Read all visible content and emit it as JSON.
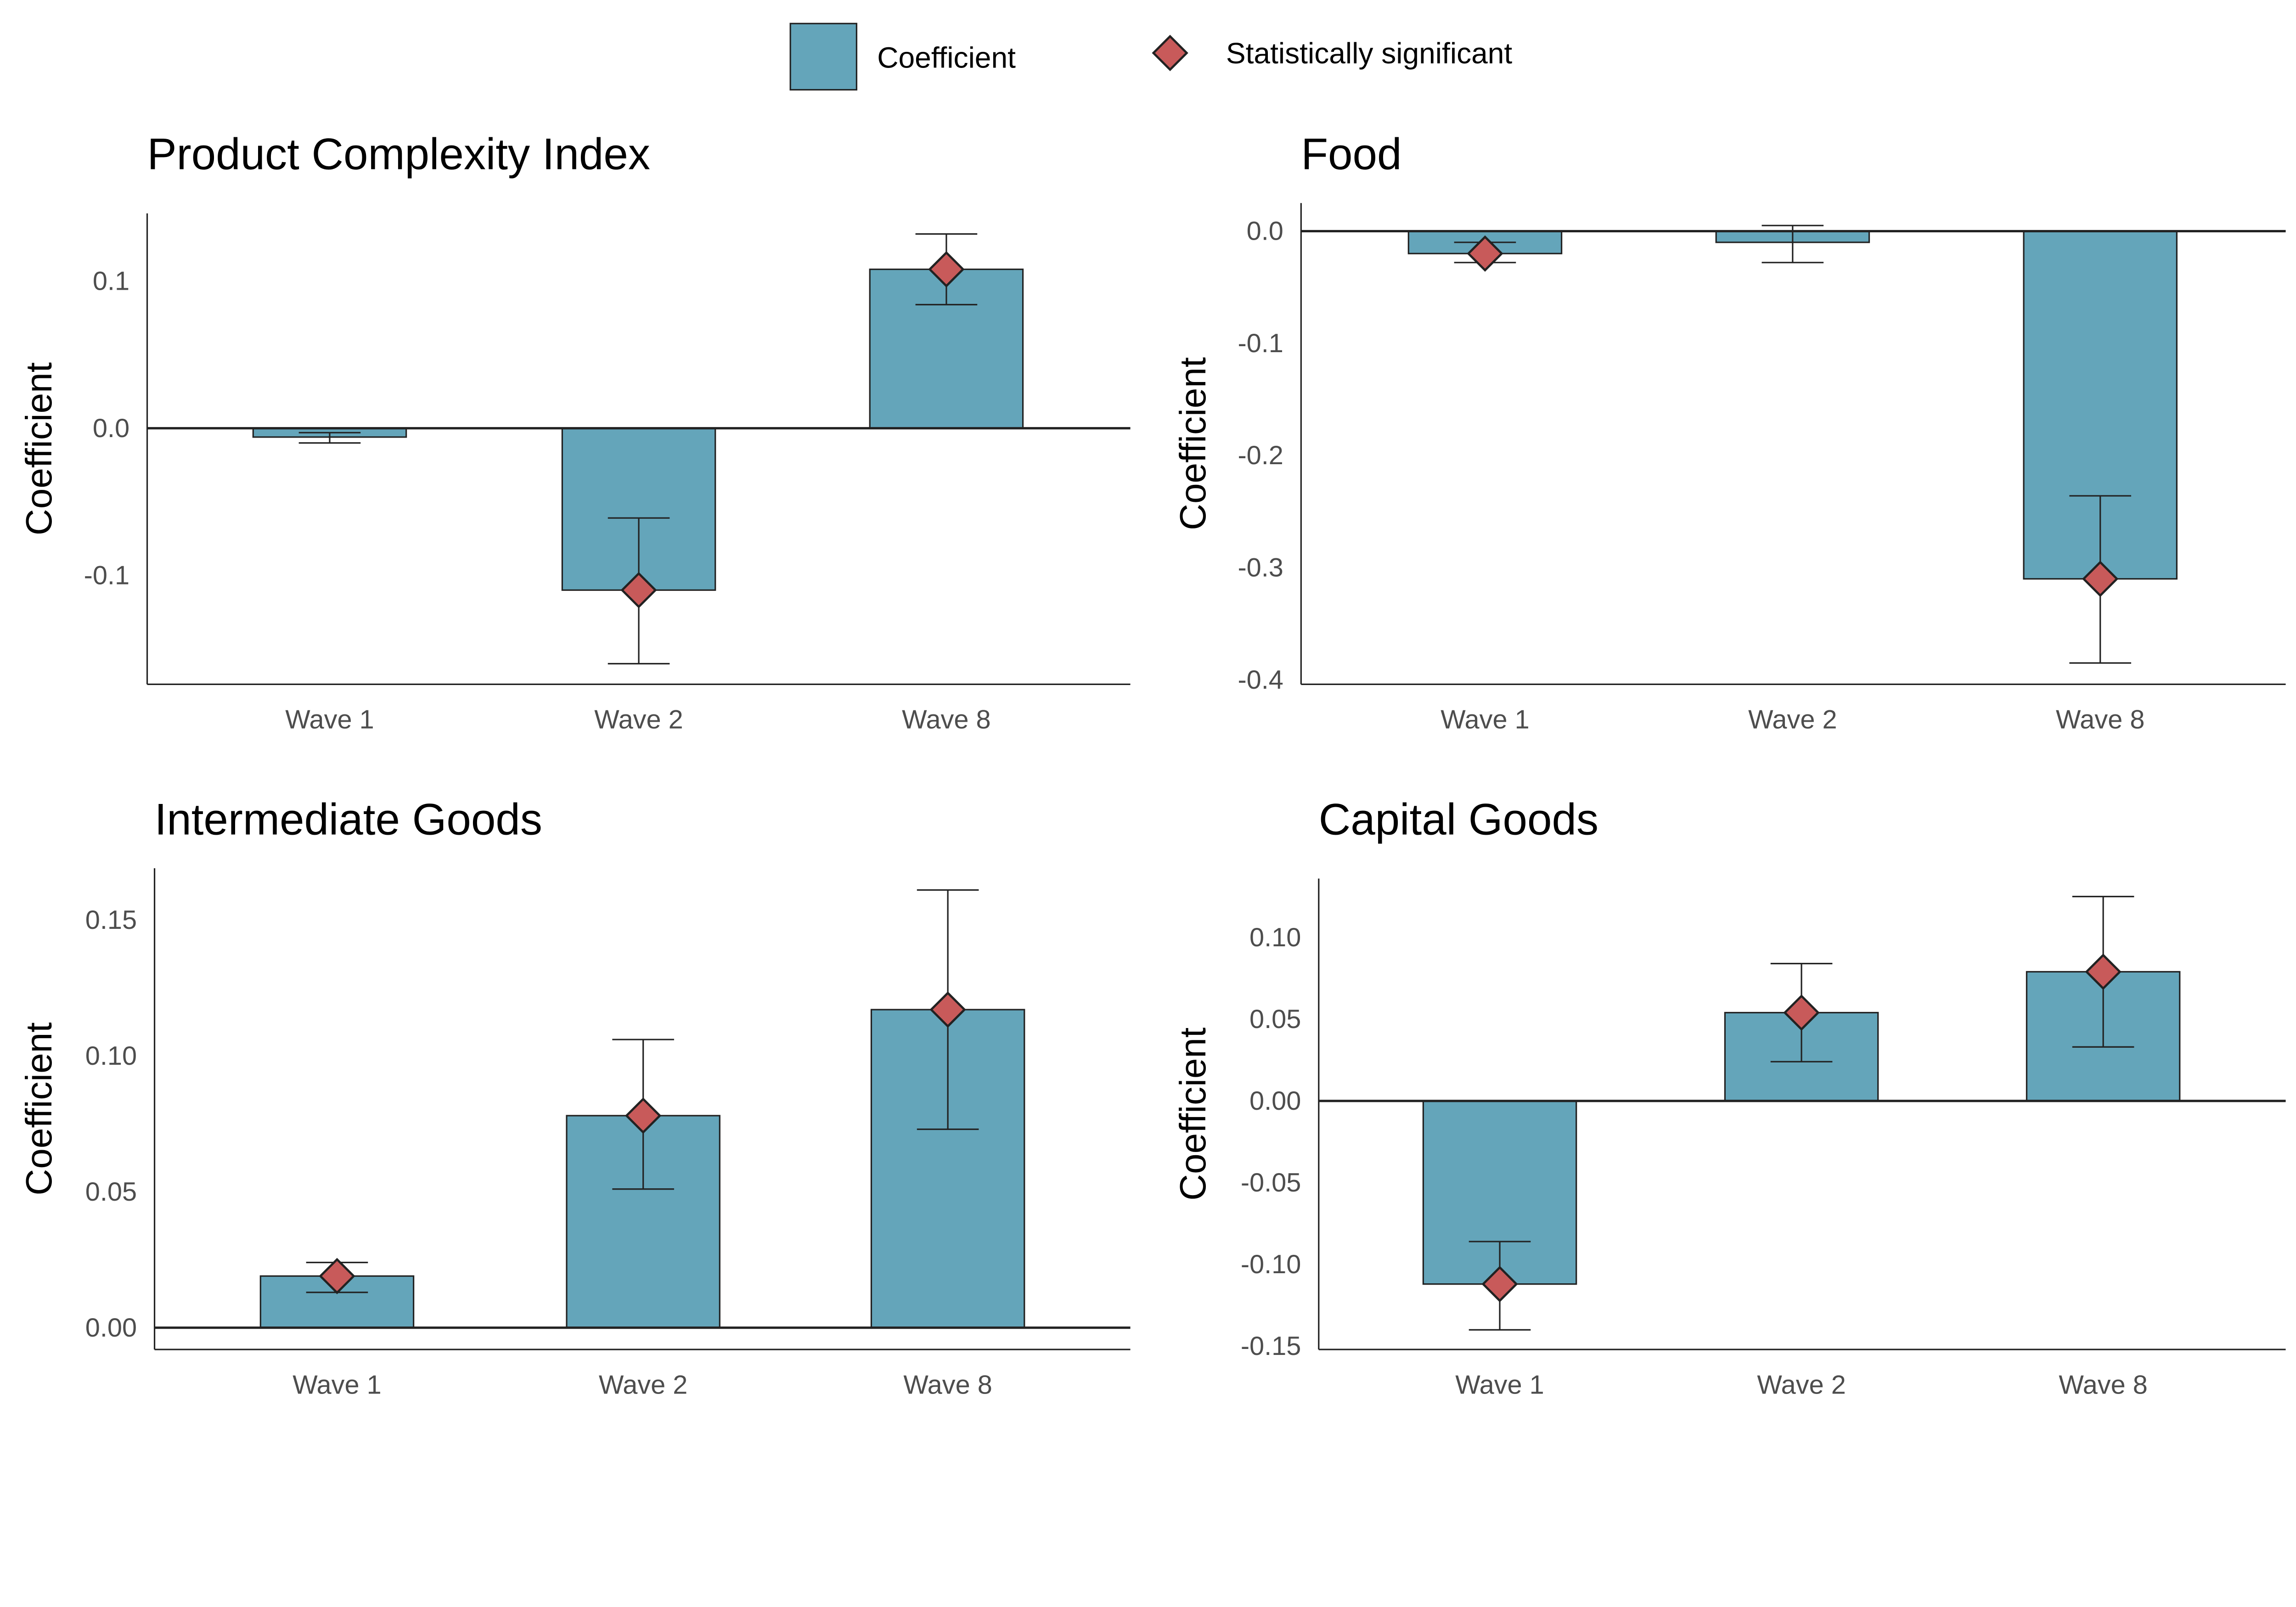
{
  "colors": {
    "bar": "#64a5ba",
    "diamond": "#c85a5a",
    "axis": "#222222"
  },
  "legend": {
    "coefficient": "Coefficient",
    "significant": "Statistically significant"
  },
  "chart_data": [
    {
      "type": "bar",
      "title": "Product Complexity Index",
      "ylabel": "Coefficient",
      "xlabel": "",
      "categories": [
        "Wave 1",
        "Wave 2",
        "Wave 8"
      ],
      "values": [
        -0.006,
        -0.11,
        0.108
      ],
      "ci_low": [
        -0.01,
        -0.16,
        0.084
      ],
      "ci_high": [
        -0.003,
        -0.061,
        0.132
      ],
      "significant": [
        false,
        true,
        true
      ],
      "ylim": [
        -0.174,
        0.146
      ],
      "yticks": [
        0.1,
        0.0,
        -0.1
      ],
      "ytick_labels": [
        "0.1",
        "0.0",
        "-0.1"
      ]
    },
    {
      "type": "bar",
      "title": "Food",
      "ylabel": "Coefficient",
      "xlabel": "",
      "categories": [
        "Wave 1",
        "Wave 2",
        "Wave 8"
      ],
      "values": [
        -0.02,
        -0.01,
        -0.31
      ],
      "ci_low": [
        -0.028,
        -0.028,
        -0.385
      ],
      "ci_high": [
        -0.01,
        0.005,
        -0.236
      ],
      "significant": [
        true,
        false,
        true
      ],
      "ylim": [
        -0.404,
        0.025
      ],
      "yticks": [
        0.0,
        -0.1,
        -0.2,
        -0.3,
        -0.4
      ],
      "ytick_labels": [
        "0.0",
        "-0.1",
        "-0.2",
        "-0.3",
        "-0.4"
      ]
    },
    {
      "type": "bar",
      "title": "Intermediate Goods",
      "ylabel": "Coefficient",
      "xlabel": "",
      "categories": [
        "Wave 1",
        "Wave 2",
        "Wave 8"
      ],
      "values": [
        0.019,
        0.078,
        0.117
      ],
      "ci_low": [
        0.013,
        0.051,
        0.073
      ],
      "ci_high": [
        0.024,
        0.106,
        0.161
      ],
      "significant": [
        true,
        true,
        true
      ],
      "ylim": [
        -0.008,
        0.169
      ],
      "yticks": [
        0.15,
        0.1,
        0.05,
        0.0
      ],
      "ytick_labels": [
        "0.15",
        "0.10",
        "0.05",
        "0.00"
      ]
    },
    {
      "type": "bar",
      "title": "Capital Goods",
      "ylabel": "Coefficient",
      "xlabel": "",
      "categories": [
        "Wave 1",
        "Wave 2",
        "Wave 8"
      ],
      "values": [
        -0.112,
        0.054,
        0.079
      ],
      "ci_low": [
        -0.14,
        0.024,
        0.033
      ],
      "ci_high": [
        -0.086,
        0.084,
        0.125
      ],
      "significant": [
        true,
        true,
        true
      ],
      "ylim": [
        -0.152,
        0.136
      ],
      "yticks": [
        0.1,
        0.05,
        0.0,
        -0.05,
        -0.1,
        -0.15
      ],
      "ytick_labels": [
        "0.10",
        "0.05",
        "0.00",
        "-0.05",
        "-0.10",
        "-0.15"
      ]
    }
  ]
}
